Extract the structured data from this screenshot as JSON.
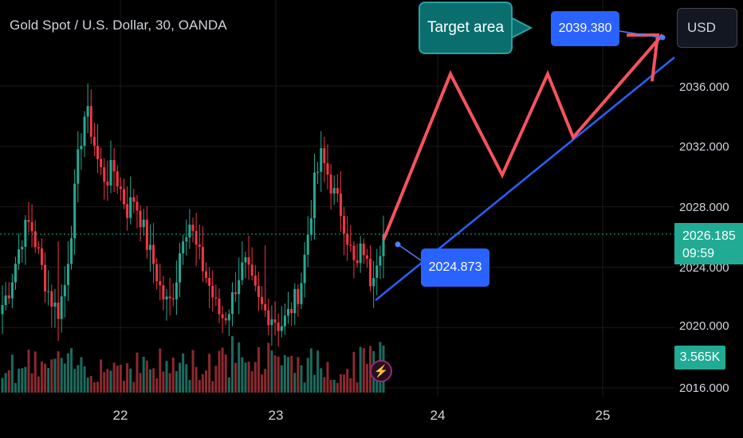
{
  "header": {
    "title": "Gold Spot / U.S. Dollar, 30, OANDA",
    "currency": "USD"
  },
  "colors": {
    "background": "#000000",
    "up": "#22ab94",
    "down": "#f23645",
    "vol_up": "#1b6b5e",
    "vol_down": "#8a2a2e",
    "drawing_red": "#f7525f",
    "drawing_blue": "#2962ff",
    "grid": "#1a1a1a",
    "price_line": "#22ab94"
  },
  "chart_data": {
    "type": "candlestick",
    "symbol": "XAUUSD",
    "timeframe": "30",
    "x_ticks": [
      "22",
      "23",
      "24",
      "25"
    ],
    "y_ticks": [
      "2016.000",
      "2020.000",
      "2024.000",
      "2028.000",
      "2032.000",
      "2036.000"
    ],
    "ylim": [
      2016,
      2039.6
    ],
    "last_price": "2026.185",
    "countdown": "09:59",
    "volume_label": "3.565K",
    "grid": true,
    "price_path": [
      2021.5,
      2022.6,
      2024.5,
      2026.3,
      2027.0,
      2025.2,
      2023.3,
      2021.9,
      2021.0,
      2022.8,
      2026.8,
      2031.5,
      2034.5,
      2032.8,
      2030.5,
      2029.8,
      2030.6,
      2029.2,
      2027.8,
      2028.6,
      2027.2,
      2025.3,
      2024.0,
      2022.2,
      2021.4,
      2023.0,
      2026.3,
      2027.0,
      2025.2,
      2023.9,
      2022.6,
      2021.1,
      2020.6,
      2021.6,
      2023.4,
      2024.2,
      2022.8,
      2021.6,
      2021.0,
      2020.8,
      2020.1,
      2020.6,
      2021.6,
      2022.7,
      2025.9,
      2029.4,
      2031.3,
      2030.1,
      2028.6,
      2027.6,
      2025.6,
      2023.6,
      2025.6,
      2023.1,
      2024.7,
      2026.2
    ],
    "annotations": {
      "target_text": "Target area",
      "target_price": "2039.380",
      "entry_price": "2024.873",
      "projection_zigzag": [
        2025.8,
        2036.8,
        2030.1,
        2036.8,
        2032.6,
        2039.4
      ],
      "trendline": [
        2021.8,
        2037.9
      ]
    }
  }
}
